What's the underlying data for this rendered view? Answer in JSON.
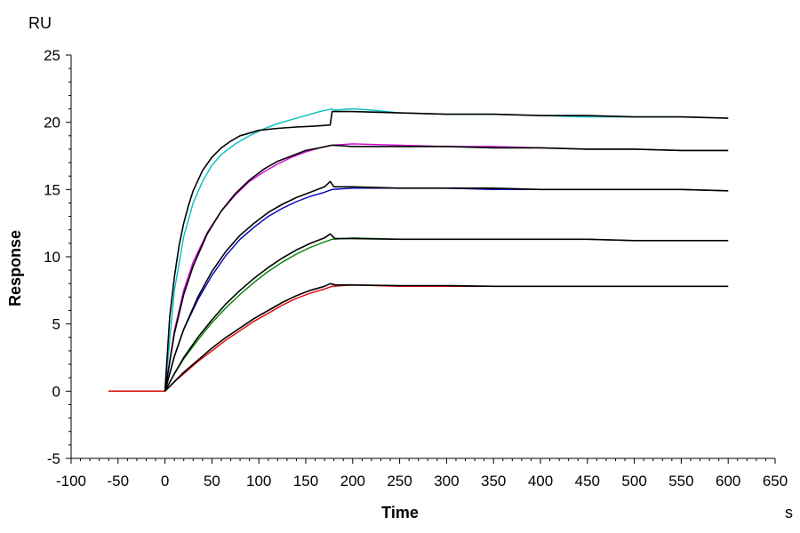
{
  "chart_data": {
    "type": "line",
    "title": "",
    "xlabel": "Time",
    "ylabel": "Response",
    "x_unit": "s",
    "y_unit": "RU",
    "xlim": [
      -100,
      650
    ],
    "ylim": [
      -5,
      25
    ],
    "x_ticks": [
      -100,
      -50,
      0,
      50,
      100,
      150,
      200,
      250,
      300,
      350,
      400,
      450,
      500,
      550,
      600,
      650
    ],
    "y_ticks": [
      -5,
      0,
      5,
      10,
      15,
      20,
      25
    ],
    "grid": false,
    "legend": "none",
    "series": [
      {
        "color": "#00c0c0",
        "points": [
          [
            -60,
            0
          ],
          [
            -50,
            0
          ],
          [
            -25,
            0
          ],
          [
            0,
            0
          ],
          [
            10,
            7.5
          ],
          [
            20,
            11.5
          ],
          [
            30,
            14
          ],
          [
            40,
            15.6
          ],
          [
            50,
            16.8
          ],
          [
            60,
            17.6
          ],
          [
            75,
            18.4
          ],
          [
            90,
            19.0
          ],
          [
            105,
            19.5
          ],
          [
            120,
            19.9
          ],
          [
            135,
            20.2
          ],
          [
            150,
            20.5
          ],
          [
            165,
            20.8
          ],
          [
            178,
            21.0
          ],
          [
            180,
            20.9
          ],
          [
            200,
            21.0
          ],
          [
            220,
            20.9
          ],
          [
            250,
            20.7
          ],
          [
            300,
            20.6
          ],
          [
            350,
            20.6
          ],
          [
            400,
            20.5
          ],
          [
            450,
            20.4
          ],
          [
            500,
            20.4
          ],
          [
            550,
            20.4
          ],
          [
            600,
            20.3
          ]
        ]
      },
      {
        "color": "#d000d0",
        "points": [
          [
            -60,
            0
          ],
          [
            -50,
            0
          ],
          [
            -25,
            0
          ],
          [
            0,
            0
          ],
          [
            10,
            4.5
          ],
          [
            20,
            7.5
          ],
          [
            30,
            9.6
          ],
          [
            45,
            11.8
          ],
          [
            60,
            13.4
          ],
          [
            75,
            14.6
          ],
          [
            90,
            15.6
          ],
          [
            105,
            16.3
          ],
          [
            120,
            16.9
          ],
          [
            135,
            17.4
          ],
          [
            150,
            17.8
          ],
          [
            165,
            18.1
          ],
          [
            178,
            18.3
          ],
          [
            200,
            18.4
          ],
          [
            250,
            18.3
          ],
          [
            300,
            18.2
          ],
          [
            350,
            18.2
          ],
          [
            400,
            18.1
          ],
          [
            450,
            18.0
          ],
          [
            500,
            18.0
          ],
          [
            550,
            17.9
          ],
          [
            600,
            17.9
          ]
        ]
      },
      {
        "color": "#0000c0",
        "points": [
          [
            -60,
            0
          ],
          [
            -50,
            0
          ],
          [
            -25,
            0
          ],
          [
            0,
            0
          ],
          [
            10,
            2.6
          ],
          [
            20,
            4.6
          ],
          [
            35,
            6.8
          ],
          [
            50,
            8.6
          ],
          [
            65,
            10.1
          ],
          [
            80,
            11.3
          ],
          [
            95,
            12.2
          ],
          [
            110,
            13.0
          ],
          [
            125,
            13.6
          ],
          [
            140,
            14.1
          ],
          [
            155,
            14.5
          ],
          [
            170,
            14.8
          ],
          [
            178,
            15.0
          ],
          [
            200,
            15.1
          ],
          [
            250,
            15.1
          ],
          [
            300,
            15.1
          ],
          [
            350,
            15.0
          ],
          [
            400,
            15.0
          ],
          [
            450,
            15.0
          ],
          [
            500,
            15.0
          ],
          [
            550,
            15.0
          ],
          [
            600,
            14.9
          ]
        ]
      },
      {
        "color": "#008000",
        "points": [
          [
            -60,
            0
          ],
          [
            -50,
            0
          ],
          [
            -25,
            0
          ],
          [
            0,
            0
          ],
          [
            10,
            1.3
          ],
          [
            20,
            2.4
          ],
          [
            35,
            3.8
          ],
          [
            50,
            5.1
          ],
          [
            65,
            6.2
          ],
          [
            80,
            7.2
          ],
          [
            95,
            8.1
          ],
          [
            110,
            8.9
          ],
          [
            125,
            9.6
          ],
          [
            140,
            10.2
          ],
          [
            155,
            10.7
          ],
          [
            170,
            11.1
          ],
          [
            178,
            11.3
          ],
          [
            200,
            11.4
          ],
          [
            250,
            11.3
          ],
          [
            300,
            11.3
          ],
          [
            350,
            11.3
          ],
          [
            400,
            11.3
          ],
          [
            450,
            11.3
          ],
          [
            500,
            11.2
          ],
          [
            550,
            11.2
          ],
          [
            600,
            11.2
          ]
        ]
      },
      {
        "color": "#e00000",
        "points": [
          [
            -60,
            0
          ],
          [
            -50,
            0
          ],
          [
            -25,
            0
          ],
          [
            0,
            0
          ],
          [
            10,
            0.7
          ],
          [
            20,
            1.3
          ],
          [
            35,
            2.2
          ],
          [
            50,
            3.0
          ],
          [
            65,
            3.8
          ],
          [
            80,
            4.5
          ],
          [
            95,
            5.2
          ],
          [
            110,
            5.8
          ],
          [
            125,
            6.4
          ],
          [
            140,
            6.9
          ],
          [
            155,
            7.3
          ],
          [
            170,
            7.6
          ],
          [
            178,
            7.8
          ],
          [
            200,
            7.9
          ],
          [
            250,
            7.8
          ],
          [
            300,
            7.8
          ],
          [
            350,
            7.8
          ],
          [
            400,
            7.8
          ],
          [
            450,
            7.8
          ],
          [
            500,
            7.8
          ],
          [
            550,
            7.8
          ],
          [
            600,
            7.8
          ]
        ]
      },
      {
        "color": "#000000",
        "points": [
          [
            0,
            0
          ],
          [
            5,
            5.5
          ],
          [
            10,
            8.5
          ],
          [
            15,
            10.8
          ],
          [
            20,
            12.5
          ],
          [
            25,
            13.8
          ],
          [
            30,
            14.9
          ],
          [
            40,
            16.4
          ],
          [
            50,
            17.4
          ],
          [
            60,
            18.1
          ],
          [
            70,
            18.6
          ],
          [
            80,
            19.0
          ],
          [
            90,
            19.2
          ],
          [
            100,
            19.4
          ],
          [
            120,
            19.55
          ],
          [
            140,
            19.65
          ],
          [
            160,
            19.72
          ],
          [
            176,
            19.8
          ],
          [
            178,
            20.8
          ],
          [
            200,
            20.8
          ],
          [
            250,
            20.7
          ],
          [
            300,
            20.6
          ],
          [
            350,
            20.6
          ],
          [
            400,
            20.5
          ],
          [
            450,
            20.5
          ],
          [
            500,
            20.4
          ],
          [
            550,
            20.4
          ],
          [
            600,
            20.3
          ]
        ]
      },
      {
        "color": "#000000",
        "points": [
          [
            0,
            0
          ],
          [
            10,
            4.3
          ],
          [
            20,
            7.2
          ],
          [
            30,
            9.3
          ],
          [
            45,
            11.7
          ],
          [
            60,
            13.4
          ],
          [
            75,
            14.7
          ],
          [
            90,
            15.7
          ],
          [
            105,
            16.5
          ],
          [
            120,
            17.1
          ],
          [
            135,
            17.5
          ],
          [
            150,
            17.9
          ],
          [
            165,
            18.1
          ],
          [
            178,
            18.3
          ],
          [
            200,
            18.2
          ],
          [
            250,
            18.2
          ],
          [
            300,
            18.2
          ],
          [
            350,
            18.1
          ],
          [
            400,
            18.1
          ],
          [
            450,
            18.0
          ],
          [
            500,
            18.0
          ],
          [
            550,
            17.9
          ],
          [
            600,
            17.9
          ]
        ]
      },
      {
        "color": "#000000",
        "points": [
          [
            0,
            0
          ],
          [
            10,
            2.6
          ],
          [
            20,
            4.6
          ],
          [
            35,
            7.0
          ],
          [
            50,
            8.9
          ],
          [
            65,
            10.4
          ],
          [
            80,
            11.6
          ],
          [
            95,
            12.5
          ],
          [
            110,
            13.3
          ],
          [
            125,
            13.9
          ],
          [
            140,
            14.4
          ],
          [
            155,
            14.8
          ],
          [
            170,
            15.2
          ],
          [
            176,
            15.6
          ],
          [
            180,
            15.2
          ],
          [
            200,
            15.2
          ],
          [
            250,
            15.1
          ],
          [
            300,
            15.1
          ],
          [
            350,
            15.1
          ],
          [
            400,
            15.0
          ],
          [
            450,
            15.0
          ],
          [
            500,
            15.0
          ],
          [
            550,
            15.0
          ],
          [
            600,
            14.9
          ]
        ]
      },
      {
        "color": "#000000",
        "points": [
          [
            0,
            0
          ],
          [
            10,
            1.3
          ],
          [
            20,
            2.5
          ],
          [
            35,
            4.0
          ],
          [
            50,
            5.3
          ],
          [
            65,
            6.5
          ],
          [
            80,
            7.5
          ],
          [
            95,
            8.4
          ],
          [
            110,
            9.2
          ],
          [
            125,
            9.9
          ],
          [
            140,
            10.5
          ],
          [
            155,
            11.0
          ],
          [
            170,
            11.4
          ],
          [
            176,
            11.7
          ],
          [
            181,
            11.35
          ],
          [
            200,
            11.35
          ],
          [
            250,
            11.3
          ],
          [
            300,
            11.3
          ],
          [
            350,
            11.3
          ],
          [
            400,
            11.3
          ],
          [
            450,
            11.3
          ],
          [
            500,
            11.2
          ],
          [
            550,
            11.2
          ],
          [
            600,
            11.2
          ]
        ]
      },
      {
        "color": "#000000",
        "points": [
          [
            0,
            0
          ],
          [
            10,
            0.7
          ],
          [
            20,
            1.4
          ],
          [
            35,
            2.3
          ],
          [
            50,
            3.2
          ],
          [
            65,
            4.0
          ],
          [
            80,
            4.7
          ],
          [
            95,
            5.4
          ],
          [
            110,
            6.0
          ],
          [
            125,
            6.6
          ],
          [
            140,
            7.1
          ],
          [
            155,
            7.5
          ],
          [
            170,
            7.8
          ],
          [
            176,
            8.0
          ],
          [
            182,
            7.9
          ],
          [
            200,
            7.9
          ],
          [
            250,
            7.85
          ],
          [
            300,
            7.85
          ],
          [
            350,
            7.8
          ],
          [
            400,
            7.8
          ],
          [
            450,
            7.8
          ],
          [
            500,
            7.8
          ],
          [
            550,
            7.8
          ],
          [
            600,
            7.8
          ]
        ]
      }
    ]
  }
}
